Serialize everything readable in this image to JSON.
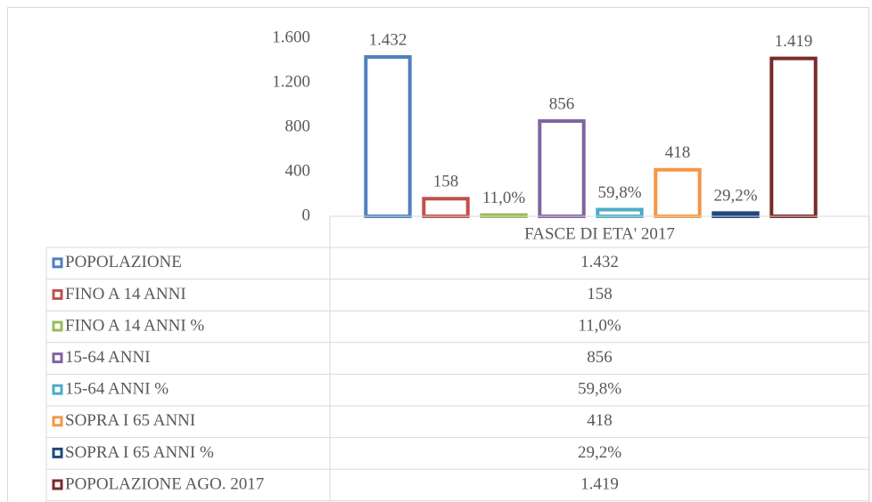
{
  "chart_data": {
    "type": "bar",
    "categories": [
      "FASCE DI ETA' 2017"
    ],
    "series": [
      {
        "name": "POPOLAZIONE",
        "color": "#4f81bd",
        "values": [
          1432
        ],
        "value_labels": [
          "1.432"
        ]
      },
      {
        "name": "FINO A 14 ANNI",
        "color": "#c0504d",
        "values": [
          158
        ],
        "value_labels": [
          "158"
        ]
      },
      {
        "name": "FINO A 14 ANNI %",
        "color": "#9bbb59",
        "values": [
          11.0
        ],
        "value_labels": [
          "11,0%"
        ]
      },
      {
        "name": "15-64 ANNI",
        "color": "#8064a2",
        "values": [
          856
        ],
        "value_labels": [
          "856"
        ]
      },
      {
        "name": "15-64 ANNI %",
        "color": "#4bacc6",
        "values": [
          59.8
        ],
        "value_labels": [
          "59,8%"
        ]
      },
      {
        "name": "SOPRA I 65 ANNI",
        "color": "#f79646",
        "values": [
          418
        ],
        "value_labels": [
          "418"
        ]
      },
      {
        "name": "SOPRA I 65 ANNI %",
        "color": "#1f497d",
        "values": [
          29.2
        ],
        "value_labels": [
          "29,2%"
        ]
      },
      {
        "name": "POPOLAZIONE AGO. 2017",
        "color": "#772c2a",
        "values": [
          1419
        ],
        "value_labels": [
          "1.419"
        ]
      }
    ],
    "ylim": [
      0,
      1600
    ],
    "yticks": [
      0,
      400,
      800,
      {
        "value": 1200,
        "label": "1.200"
      },
      {
        "value": 1600,
        "label": "1.600"
      }
    ],
    "data_table": true
  }
}
